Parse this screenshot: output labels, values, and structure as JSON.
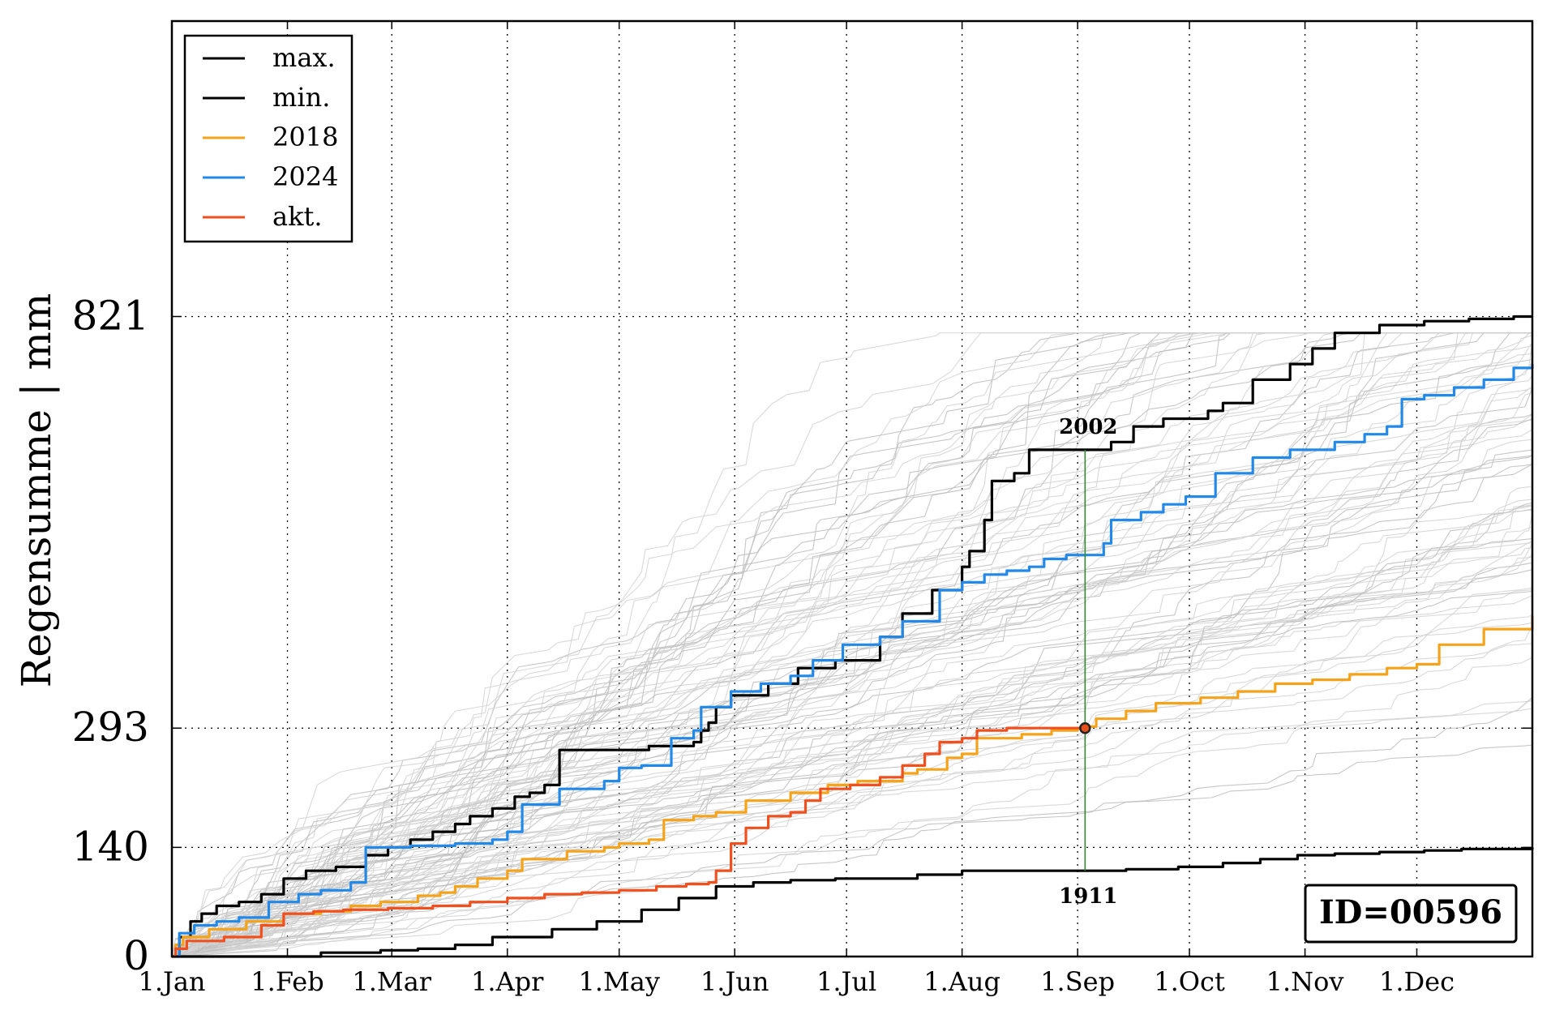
{
  "chart_data": {
    "type": "line",
    "ylabel": "Regensumme | mm",
    "xlabel": "",
    "x_ticks": [
      "1.Jan",
      "1.Feb",
      "1.Mar",
      "1.Apr",
      "1.May",
      "1.Jun",
      "1.Jul",
      "1.Aug",
      "1.Sep",
      "1.Oct",
      "1.Nov",
      "1.Dec"
    ],
    "x_tick_days": [
      0,
      31,
      59,
      90,
      120,
      151,
      181,
      212,
      243,
      273,
      304,
      334
    ],
    "xlim_days": [
      0,
      365
    ],
    "y_ticks": [
      0,
      140,
      293,
      821
    ],
    "ylim": [
      0,
      1200
    ],
    "grid": "dotted",
    "legend_position": "top-left",
    "legend": [
      {
        "label": "max.",
        "color": "#000000"
      },
      {
        "label": "min.",
        "color": "#000000"
      },
      {
        "label": "2018",
        "color": "#f5a31a"
      },
      {
        "label": "2024",
        "color": "#2389e8"
      },
      {
        "label": "akt.",
        "color": "#f0501e"
      }
    ],
    "annotations": {
      "max_year": "2002",
      "min_year": "1911",
      "marker_day": 245,
      "marker_value": 293,
      "station_id": "ID=00596"
    },
    "series": [
      {
        "name": "max.",
        "color": "#000000",
        "points": [
          [
            0,
            0
          ],
          [
            2,
            25
          ],
          [
            5,
            45
          ],
          [
            8,
            55
          ],
          [
            12,
            65
          ],
          [
            18,
            70
          ],
          [
            24,
            80
          ],
          [
            30,
            100
          ],
          [
            36,
            110
          ],
          [
            44,
            115
          ],
          [
            52,
            130
          ],
          [
            58,
            140
          ],
          [
            64,
            150
          ],
          [
            70,
            160
          ],
          [
            76,
            170
          ],
          [
            80,
            180
          ],
          [
            86,
            190
          ],
          [
            92,
            205
          ],
          [
            96,
            210
          ],
          [
            100,
            220
          ],
          [
            104,
            265
          ],
          [
            116,
            265
          ],
          [
            128,
            270
          ],
          [
            140,
            275
          ],
          [
            142,
            290
          ],
          [
            144,
            300
          ],
          [
            146,
            320
          ],
          [
            150,
            335
          ],
          [
            160,
            350
          ],
          [
            168,
            370
          ],
          [
            178,
            380
          ],
          [
            190,
            410
          ],
          [
            196,
            440
          ],
          [
            204,
            470
          ],
          [
            212,
            500
          ],
          [
            214,
            520
          ],
          [
            218,
            560
          ],
          [
            220,
            610
          ],
          [
            226,
            620
          ],
          [
            230,
            650
          ],
          [
            244,
            650
          ],
          [
            252,
            660
          ],
          [
            258,
            680
          ],
          [
            266,
            690
          ],
          [
            272,
            690
          ],
          [
            278,
            700
          ],
          [
            282,
            710
          ],
          [
            290,
            740
          ],
          [
            300,
            760
          ],
          [
            306,
            780
          ],
          [
            312,
            800
          ],
          [
            324,
            810
          ],
          [
            336,
            815
          ],
          [
            348,
            818
          ],
          [
            360,
            821
          ],
          [
            365,
            821
          ]
        ]
      },
      {
        "name": "min.",
        "color": "#000000",
        "points": [
          [
            0,
            0
          ],
          [
            30,
            0
          ],
          [
            40,
            5
          ],
          [
            56,
            8
          ],
          [
            66,
            10
          ],
          [
            76,
            15
          ],
          [
            86,
            25
          ],
          [
            102,
            35
          ],
          [
            114,
            45
          ],
          [
            126,
            60
          ],
          [
            136,
            75
          ],
          [
            146,
            90
          ],
          [
            156,
            95
          ],
          [
            166,
            98
          ],
          [
            178,
            100
          ],
          [
            200,
            105
          ],
          [
            212,
            110
          ],
          [
            224,
            110
          ],
          [
            246,
            110
          ],
          [
            256,
            112
          ],
          [
            270,
            115
          ],
          [
            282,
            120
          ],
          [
            292,
            125
          ],
          [
            302,
            130
          ],
          [
            312,
            132
          ],
          [
            324,
            134
          ],
          [
            336,
            136
          ],
          [
            346,
            138
          ],
          [
            365,
            140
          ]
        ]
      },
      {
        "name": "2018",
        "color": "#f5a31a",
        "points": [
          [
            0,
            0
          ],
          [
            1,
            15
          ],
          [
            3,
            25
          ],
          [
            10,
            35
          ],
          [
            20,
            45
          ],
          [
            30,
            55
          ],
          [
            40,
            58
          ],
          [
            48,
            65
          ],
          [
            56,
            70
          ],
          [
            66,
            78
          ],
          [
            72,
            82
          ],
          [
            76,
            90
          ],
          [
            82,
            100
          ],
          [
            90,
            110
          ],
          [
            94,
            125
          ],
          [
            106,
            135
          ],
          [
            116,
            140
          ],
          [
            120,
            145
          ],
          [
            128,
            150
          ],
          [
            132,
            175
          ],
          [
            140,
            180
          ],
          [
            146,
            185
          ],
          [
            154,
            200
          ],
          [
            166,
            210
          ],
          [
            176,
            220
          ],
          [
            184,
            225
          ],
          [
            196,
            235
          ],
          [
            200,
            240
          ],
          [
            208,
            255
          ],
          [
            212,
            260
          ],
          [
            216,
            280
          ],
          [
            228,
            285
          ],
          [
            236,
            290
          ],
          [
            243,
            293
          ],
          [
            245,
            295
          ],
          [
            248,
            305
          ],
          [
            256,
            315
          ],
          [
            264,
            325
          ],
          [
            276,
            332
          ],
          [
            286,
            340
          ],
          [
            296,
            350
          ],
          [
            306,
            355
          ],
          [
            316,
            362
          ],
          [
            326,
            370
          ],
          [
            334,
            375
          ],
          [
            340,
            400
          ],
          [
            352,
            420
          ],
          [
            365,
            437
          ]
        ]
      },
      {
        "name": "2024",
        "color": "#2389e8",
        "points": [
          [
            0,
            0
          ],
          [
            2,
            30
          ],
          [
            6,
            40
          ],
          [
            12,
            45
          ],
          [
            18,
            50
          ],
          [
            26,
            70
          ],
          [
            34,
            80
          ],
          [
            40,
            85
          ],
          [
            48,
            95
          ],
          [
            52,
            140
          ],
          [
            64,
            142
          ],
          [
            76,
            145
          ],
          [
            86,
            150
          ],
          [
            90,
            160
          ],
          [
            94,
            195
          ],
          [
            104,
            215
          ],
          [
            116,
            225
          ],
          [
            120,
            242
          ],
          [
            126,
            245
          ],
          [
            134,
            280
          ],
          [
            140,
            290
          ],
          [
            142,
            320
          ],
          [
            150,
            340
          ],
          [
            158,
            350
          ],
          [
            166,
            360
          ],
          [
            172,
            380
          ],
          [
            180,
            400
          ],
          [
            190,
            410
          ],
          [
            196,
            430
          ],
          [
            206,
            470
          ],
          [
            212,
            480
          ],
          [
            218,
            490
          ],
          [
            224,
            495
          ],
          [
            230,
            500
          ],
          [
            234,
            510
          ],
          [
            240,
            515
          ],
          [
            246,
            515
          ],
          [
            250,
            530
          ],
          [
            252,
            560
          ],
          [
            260,
            570
          ],
          [
            266,
            580
          ],
          [
            272,
            590
          ],
          [
            280,
            620
          ],
          [
            290,
            640
          ],
          [
            300,
            650
          ],
          [
            312,
            660
          ],
          [
            320,
            670
          ],
          [
            326,
            680
          ],
          [
            330,
            715
          ],
          [
            336,
            720
          ],
          [
            344,
            730
          ],
          [
            352,
            740
          ],
          [
            360,
            755
          ],
          [
            365,
            760
          ]
        ]
      },
      {
        "name": "akt.",
        "color": "#f0501e",
        "points": [
          [
            0,
            0
          ],
          [
            1,
            10
          ],
          [
            4,
            20
          ],
          [
            14,
            25
          ],
          [
            24,
            40
          ],
          [
            30,
            55
          ],
          [
            38,
            58
          ],
          [
            46,
            60
          ],
          [
            58,
            62
          ],
          [
            70,
            65
          ],
          [
            80,
            70
          ],
          [
            90,
            75
          ],
          [
            100,
            80
          ],
          [
            110,
            82
          ],
          [
            120,
            85
          ],
          [
            130,
            90
          ],
          [
            138,
            93
          ],
          [
            144,
            95
          ],
          [
            146,
            110
          ],
          [
            150,
            145
          ],
          [
            154,
            165
          ],
          [
            160,
            180
          ],
          [
            166,
            185
          ],
          [
            170,
            200
          ],
          [
            174,
            215
          ],
          [
            182,
            220
          ],
          [
            190,
            230
          ],
          [
            196,
            245
          ],
          [
            202,
            260
          ],
          [
            206,
            275
          ],
          [
            212,
            280
          ],
          [
            216,
            290
          ],
          [
            224,
            293
          ],
          [
            234,
            293
          ],
          [
            245,
            293
          ]
        ]
      }
    ]
  }
}
